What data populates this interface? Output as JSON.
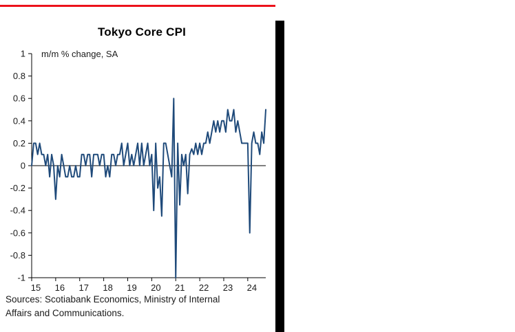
{
  "chart_data": {
    "type": "line",
    "title": "Tokyo Core CPI",
    "subtitle": "m/m % change, SA",
    "x_tick_labels": [
      "15",
      "16",
      "17",
      "18",
      "19",
      "20",
      "21",
      "22",
      "23",
      "24"
    ],
    "y_tick_labels": [
      "1",
      "0.8",
      "0.6",
      "0.4",
      "0.2",
      "0",
      "-0.2",
      "-0.4",
      "-0.6",
      "-0.8",
      "-1"
    ],
    "ylim": [
      -1,
      1
    ],
    "x_range_months": [
      "2015-01",
      "2024-10"
    ],
    "grid": "zero-line-only",
    "legend": "none",
    "line_color": "#1f4a7a",
    "series": [
      {
        "name": "Tokyo core CPI, m/m % change, SA",
        "values": [
          0.0,
          0.2,
          0.2,
          0.1,
          0.2,
          0.1,
          0.1,
          0.0,
          0.1,
          -0.1,
          0.1,
          0.0,
          -0.3,
          0.0,
          -0.1,
          0.1,
          0.0,
          -0.1,
          -0.1,
          0.0,
          -0.1,
          -0.1,
          0.0,
          -0.1,
          -0.1,
          0.1,
          0.1,
          0.0,
          0.1,
          0.1,
          -0.1,
          0.1,
          0.1,
          0.1,
          0.0,
          0.1,
          0.1,
          -0.1,
          0.0,
          -0.1,
          0.1,
          0.1,
          0.0,
          0.1,
          0.1,
          0.2,
          0.0,
          0.1,
          0.2,
          0.0,
          0.1,
          0.0,
          0.1,
          0.2,
          0.0,
          0.2,
          0.0,
          0.1,
          0.2,
          0.0,
          0.1,
          -0.4,
          0.2,
          -0.2,
          -0.1,
          -0.45,
          0.2,
          0.2,
          0.1,
          0.0,
          -0.1,
          0.6,
          -1.0,
          0.2,
          -0.35,
          0.1,
          0.0,
          0.1,
          -0.25,
          0.1,
          0.15,
          0.1,
          0.2,
          0.1,
          0.2,
          0.1,
          0.2,
          0.2,
          0.3,
          0.2,
          0.3,
          0.4,
          0.3,
          0.4,
          0.3,
          0.4,
          0.4,
          0.3,
          0.5,
          0.4,
          0.4,
          0.5,
          0.3,
          0.4,
          0.3,
          0.2,
          0.2,
          0.2,
          0.2,
          -0.6,
          0.2,
          0.3,
          0.2,
          0.2,
          0.1,
          0.3,
          0.2,
          0.5
        ]
      }
    ]
  },
  "source_note": {
    "line1": "Sources: Scotiabank Economics, Ministry of Internal",
    "line2": "Affairs and Communications."
  },
  "decorations": {
    "top_rule_color": "#ec111a",
    "divider_bar_color": "#000000",
    "axis_color": "#000000",
    "text_color": "#1a1a1a"
  }
}
